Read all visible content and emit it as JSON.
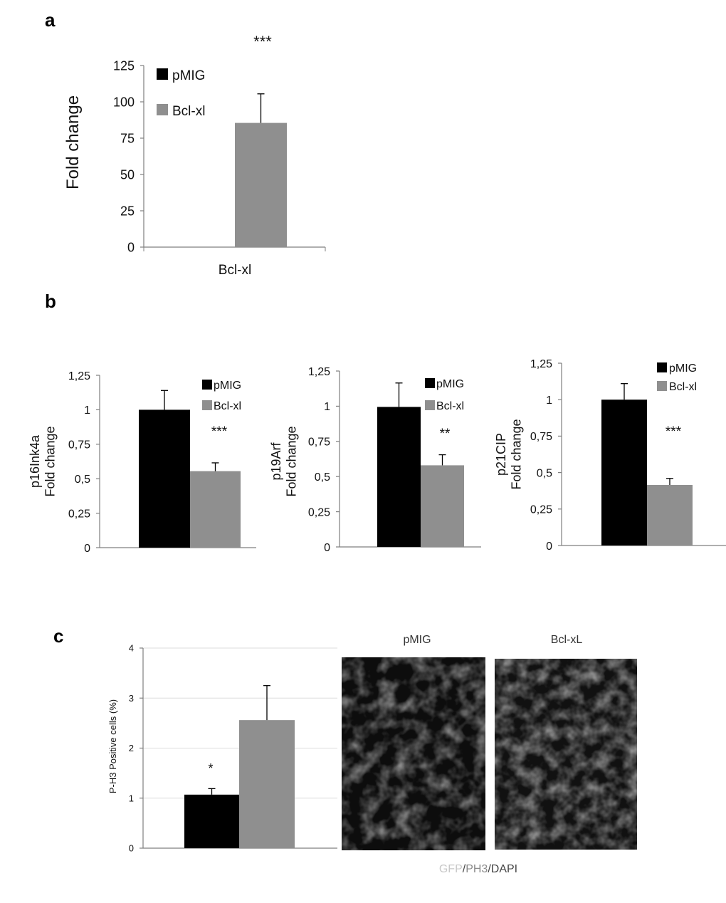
{
  "colors": {
    "black": "#000000",
    "gray": "#8f8f8f",
    "axis": "#7f7f7f",
    "grid": "#dcdcdc",
    "micro_bg": "#0d0d0d"
  },
  "chart_data": [
    {
      "id": "a",
      "panel_label": "a",
      "type": "bar",
      "categories": [
        "Bcl-xl"
      ],
      "series": [
        {
          "name": "pMIG",
          "values": [
            0
          ],
          "errors": [
            0
          ],
          "color": "#000000"
        },
        {
          "name": "Bcl-xl",
          "values": [
            85.5
          ],
          "errors": [
            20
          ],
          "color": "#8f8f8f"
        }
      ],
      "ylabel": "Fold change",
      "xlabel": "",
      "ylim": [
        0,
        125
      ],
      "yticks": [
        "0",
        "25",
        "50",
        "75",
        "100",
        "125"
      ],
      "ytick_values": [
        0,
        25,
        50,
        75,
        100,
        125
      ],
      "significance": "***",
      "legend_position": "top-left",
      "grid": false
    },
    {
      "id": "b1",
      "panel_label": "b",
      "type": "bar",
      "categories": [
        ""
      ],
      "series": [
        {
          "name": "pMIG",
          "values": [
            1.0
          ],
          "errors": [
            0.14
          ],
          "color": "#000000"
        },
        {
          "name": "Bcl-xl",
          "values": [
            0.555
          ],
          "errors": [
            0.06
          ],
          "color": "#8f8f8f"
        }
      ],
      "ylabel": [
        "p16Ink4a",
        "Fold change"
      ],
      "xlabel": "",
      "ylim": [
        0,
        1.25
      ],
      "yticks": [
        "0",
        "0,25",
        "0,5",
        "0,75",
        "1",
        "1,25"
      ],
      "ytick_values": [
        0,
        0.25,
        0.5,
        0.75,
        1,
        1.25
      ],
      "significance": "***",
      "legend_position": "top-right",
      "grid": false
    },
    {
      "id": "b2",
      "type": "bar",
      "categories": [
        ""
      ],
      "series": [
        {
          "name": "pMIG",
          "values": [
            0.995
          ],
          "errors": [
            0.17
          ],
          "color": "#000000"
        },
        {
          "name": "Bcl-xl",
          "values": [
            0.58
          ],
          "errors": [
            0.075
          ],
          "color": "#8f8f8f"
        }
      ],
      "ylabel": [
        "p19Arf",
        "Fold change"
      ],
      "xlabel": "",
      "ylim": [
        0,
        1.25
      ],
      "yticks": [
        "0",
        "0,25",
        "0,5",
        "0,75",
        "1",
        "1,25"
      ],
      "ytick_values": [
        0,
        0.25,
        0.5,
        0.75,
        1,
        1.25
      ],
      "significance": "**",
      "legend_position": "top-right",
      "grid": false
    },
    {
      "id": "b3",
      "type": "bar",
      "categories": [
        ""
      ],
      "series": [
        {
          "name": "pMIG",
          "values": [
            1.0
          ],
          "errors": [
            0.11
          ],
          "color": "#000000"
        },
        {
          "name": "Bcl-xl",
          "values": [
            0.415
          ],
          "errors": [
            0.045
          ],
          "color": "#8f8f8f"
        }
      ],
      "ylabel": [
        "p21CIP",
        "Fold change"
      ],
      "xlabel": "",
      "ylim": [
        0,
        1.25
      ],
      "yticks": [
        "0",
        "0,25",
        "0,5",
        "0,75",
        "1",
        "1,25"
      ],
      "ytick_values": [
        0,
        0.25,
        0.5,
        0.75,
        1,
        1.25
      ],
      "significance": "***",
      "legend_position": "top-right",
      "grid": false
    },
    {
      "id": "c",
      "panel_label": "c",
      "type": "bar",
      "categories": [
        ""
      ],
      "series": [
        {
          "name": "pMIG",
          "values": [
            1.07
          ],
          "errors": [
            0.12
          ],
          "color": "#000000"
        },
        {
          "name": "Bcl-xL",
          "values": [
            2.56
          ],
          "errors": [
            0.69
          ],
          "color": "#8f8f8f"
        }
      ],
      "ylabel": "P-H3 Positive cells (%)",
      "xlabel": "",
      "ylim": [
        0,
        4
      ],
      "yticks": [
        "0",
        "1",
        "2",
        "3",
        "4"
      ],
      "ytick_values": [
        0,
        1,
        2,
        3,
        4
      ],
      "significance": "*",
      "legend_position": "none",
      "grid": true
    }
  ],
  "micrographs": {
    "left_title": "pMIG",
    "right_title": "Bcl-xL",
    "caption_gfp": "GFP",
    "caption_sep1": "/",
    "caption_ph3": "PH3",
    "caption_sep2": "/DAPI",
    "caption_colors": {
      "gfp": "#c8c8c8",
      "ph3": "#8a8a8a",
      "dapi": "#444444"
    }
  }
}
